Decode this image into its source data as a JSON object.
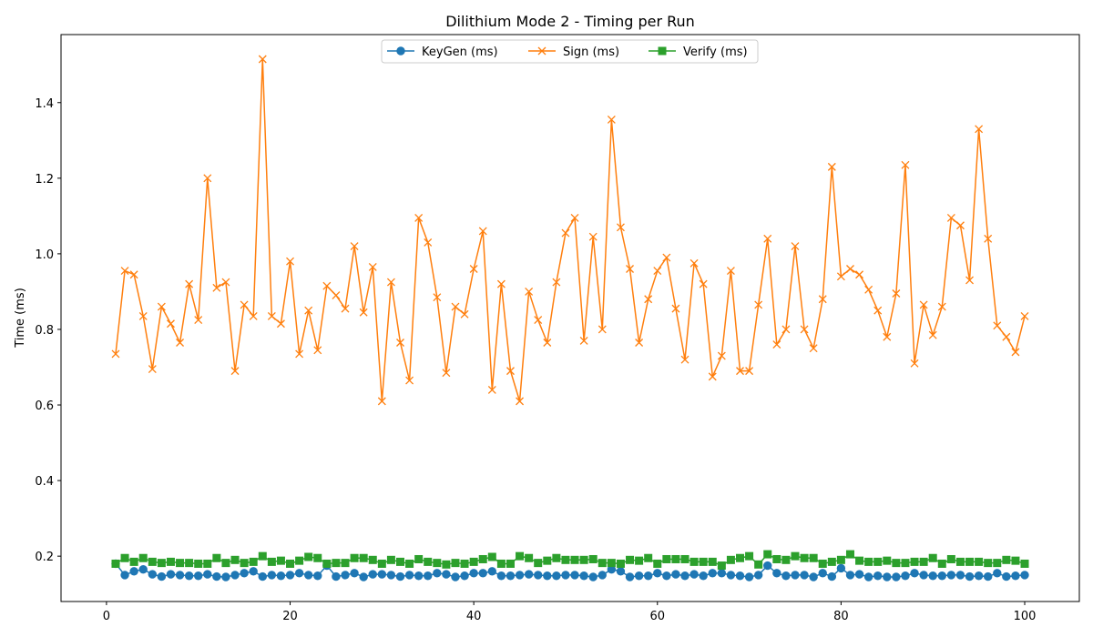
{
  "chart_data": {
    "type": "line",
    "title": "Dilithium Mode 2 - Timing per Run",
    "xlabel": "",
    "ylabel": "Time (ms)",
    "xlim": [
      -4.95,
      105.95
    ],
    "ylim": [
      0.08,
      1.58
    ],
    "xticks": [
      0,
      20,
      40,
      60,
      80,
      100
    ],
    "yticks": [
      0.2,
      0.4,
      0.6,
      0.8,
      1.0,
      1.2,
      1.4
    ],
    "ytick_labels": [
      "0.2",
      "0.4",
      "0.6",
      "0.8",
      "1.0",
      "1.2",
      "1.4"
    ],
    "xtick_labels": [
      "0",
      "20",
      "40",
      "60",
      "80",
      "100"
    ],
    "grid": false,
    "legend_position": "top-center",
    "x": [
      1,
      2,
      3,
      4,
      5,
      6,
      7,
      8,
      9,
      10,
      11,
      12,
      13,
      14,
      15,
      16,
      17,
      18,
      19,
      20,
      21,
      22,
      23,
      24,
      25,
      26,
      27,
      28,
      29,
      30,
      31,
      32,
      33,
      34,
      35,
      36,
      37,
      38,
      39,
      40,
      41,
      42,
      43,
      44,
      45,
      46,
      47,
      48,
      49,
      50,
      51,
      52,
      53,
      54,
      55,
      56,
      57,
      58,
      59,
      60,
      61,
      62,
      63,
      64,
      65,
      66,
      67,
      68,
      69,
      70,
      71,
      72,
      73,
      74,
      75,
      76,
      77,
      78,
      79,
      80,
      81,
      82,
      83,
      84,
      85,
      86,
      87,
      88,
      89,
      90,
      91,
      92,
      93,
      94,
      95,
      96,
      97,
      98,
      99,
      100
    ],
    "series": [
      {
        "name": "KeyGen (ms)",
        "color": "#1f77b4",
        "marker": "circle",
        "values": [
          0.18,
          0.15,
          0.16,
          0.165,
          0.152,
          0.146,
          0.152,
          0.15,
          0.148,
          0.148,
          0.152,
          0.146,
          0.145,
          0.15,
          0.155,
          0.16,
          0.146,
          0.15,
          0.148,
          0.15,
          0.155,
          0.15,
          0.148,
          0.175,
          0.146,
          0.15,
          0.155,
          0.145,
          0.152,
          0.152,
          0.15,
          0.146,
          0.15,
          0.148,
          0.148,
          0.155,
          0.152,
          0.145,
          0.148,
          0.155,
          0.155,
          0.16,
          0.148,
          0.148,
          0.15,
          0.152,
          0.15,
          0.148,
          0.148,
          0.15,
          0.15,
          0.148,
          0.145,
          0.15,
          0.165,
          0.16,
          0.145,
          0.148,
          0.148,
          0.155,
          0.148,
          0.152,
          0.148,
          0.152,
          0.148,
          0.155,
          0.155,
          0.15,
          0.148,
          0.145,
          0.15,
          0.175,
          0.155,
          0.148,
          0.15,
          0.15,
          0.145,
          0.155,
          0.146,
          0.168,
          0.15,
          0.152,
          0.145,
          0.148,
          0.145,
          0.145,
          0.148,
          0.155,
          0.15,
          0.148,
          0.148,
          0.15,
          0.15,
          0.146,
          0.148,
          0.146,
          0.155,
          0.146,
          0.148,
          0.15
        ]
      },
      {
        "name": "Sign (ms)",
        "color": "#ff7f0e",
        "marker": "x",
        "values": [
          0.735,
          0.955,
          0.945,
          0.835,
          0.695,
          0.86,
          0.815,
          0.765,
          0.92,
          0.825,
          1.2,
          0.91,
          0.925,
          0.69,
          0.865,
          0.835,
          1.515,
          0.835,
          0.815,
          0.98,
          0.735,
          0.85,
          0.745,
          0.915,
          0.89,
          0.855,
          1.02,
          0.845,
          0.965,
          0.61,
          0.925,
          0.765,
          0.665,
          1.095,
          1.03,
          0.885,
          0.685,
          0.86,
          0.84,
          0.96,
          1.06,
          0.64,
          0.92,
          0.69,
          0.61,
          0.9,
          0.825,
          0.765,
          0.925,
          1.055,
          1.095,
          0.77,
          1.045,
          0.8,
          1.355,
          1.07,
          0.96,
          0.765,
          0.88,
          0.955,
          0.99,
          0.855,
          0.72,
          0.975,
          0.92,
          0.675,
          0.73,
          0.955,
          0.69,
          0.69,
          0.865,
          1.04,
          0.76,
          0.8,
          1.02,
          0.8,
          0.75,
          0.88,
          1.23,
          0.94,
          0.96,
          0.945,
          0.905,
          0.85,
          0.78,
          0.895,
          1.235,
          0.71,
          0.865,
          0.785,
          0.86,
          1.095,
          1.075,
          0.93,
          1.33,
          1.04,
          0.81,
          0.78,
          0.74,
          0.835
        ]
      },
      {
        "name": "Verify (ms)",
        "color": "#2ca02c",
        "marker": "square",
        "values": [
          0.18,
          0.195,
          0.185,
          0.195,
          0.185,
          0.182,
          0.185,
          0.182,
          0.182,
          0.18,
          0.18,
          0.195,
          0.182,
          0.19,
          0.182,
          0.185,
          0.2,
          0.185,
          0.188,
          0.18,
          0.188,
          0.198,
          0.195,
          0.18,
          0.182,
          0.182,
          0.195,
          0.195,
          0.19,
          0.18,
          0.19,
          0.185,
          0.18,
          0.192,
          0.185,
          0.182,
          0.178,
          0.182,
          0.18,
          0.185,
          0.192,
          0.198,
          0.18,
          0.18,
          0.2,
          0.195,
          0.182,
          0.188,
          0.195,
          0.19,
          0.19,
          0.19,
          0.192,
          0.182,
          0.182,
          0.18,
          0.19,
          0.188,
          0.195,
          0.18,
          0.192,
          0.192,
          0.192,
          0.185,
          0.185,
          0.185,
          0.175,
          0.19,
          0.195,
          0.2,
          0.178,
          0.205,
          0.192,
          0.19,
          0.2,
          0.195,
          0.195,
          0.18,
          0.185,
          0.19,
          0.205,
          0.188,
          0.185,
          0.185,
          0.188,
          0.182,
          0.182,
          0.185,
          0.185,
          0.195,
          0.18,
          0.192,
          0.185,
          0.185,
          0.185,
          0.182,
          0.182,
          0.19,
          0.188,
          0.18
        ]
      }
    ]
  }
}
